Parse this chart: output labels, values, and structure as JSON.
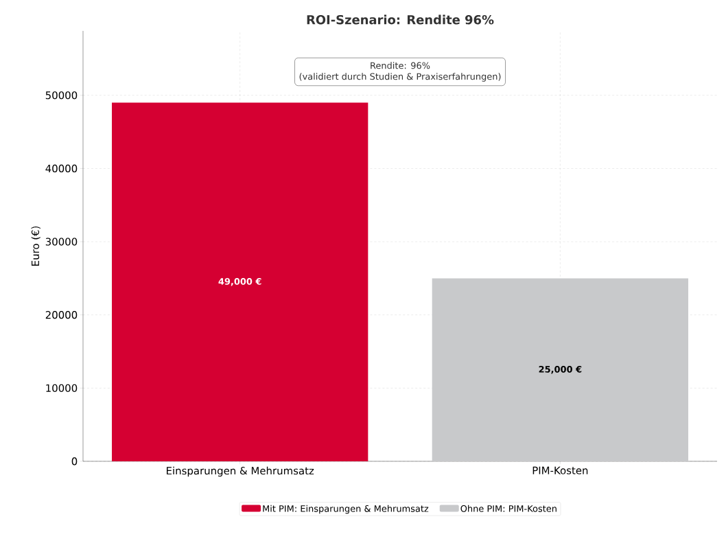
{
  "chart_data": {
    "type": "bar",
    "title": "ROI-Szenario: Rendite 96%",
    "ylabel": "Euro (€)",
    "categories": [
      "Einsparungen & Mehrumsatz",
      "PIM-Kosten"
    ],
    "series": [
      {
        "name": "Mit PIM: Einsparungen & Mehrumsatz",
        "color": "#d50032",
        "values": [
          49000,
          null
        ],
        "value_labels": [
          "49,000 €",
          null
        ]
      },
      {
        "name": "Ohne PIM: PIM-Kosten",
        "color": "#c8c9cb",
        "values": [
          null,
          25000
        ],
        "value_labels": [
          null,
          "25,000 €"
        ]
      }
    ],
    "annotations": [
      "Rendite: 96%",
      "(validiert durch Studien & Praxiserfahrungen)"
    ],
    "ylim": [
      0,
      58800
    ],
    "yticks": [
      0,
      10000,
      20000,
      30000,
      40000,
      50000
    ],
    "grid": true,
    "legend": "bottom"
  }
}
